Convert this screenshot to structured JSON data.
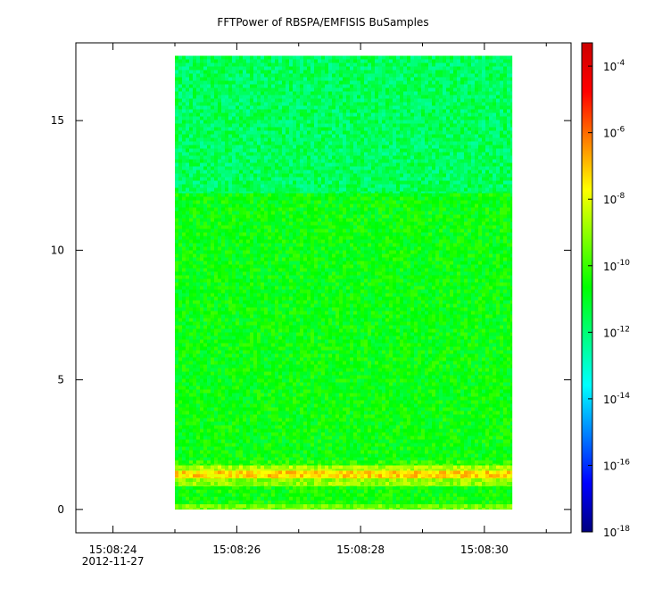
{
  "chart_data": {
    "type": "heatmap",
    "title": "FFTPower of RBSPA/EMFISIS  BuSamples",
    "xlabel": "",
    "ylabel": "",
    "x_range": [
      "15:08:23.4",
      "15:08:31.4"
    ],
    "x_ticks": [
      {
        "label": "15:08:24",
        "sub": "2012-11-27",
        "t": 0.6
      },
      {
        "label": "15:08:26",
        "sub": "",
        "t": 2.6
      },
      {
        "label": "15:08:28",
        "sub": "",
        "t": 4.6
      },
      {
        "label": "15:08:30",
        "sub": "",
        "t": 6.6
      }
    ],
    "x_minor_ticks": [
      1.6,
      3.6,
      5.6,
      7.6
    ],
    "ylim": [
      -0.9,
      18.0
    ],
    "y_ticks": [
      0,
      5,
      10,
      15
    ],
    "colorbar": {
      "scale": "log",
      "range_exp": [
        -18,
        -3.3
      ],
      "tick_exps": [
        -18,
        -16,
        -14,
        -12,
        -10,
        -8,
        -6,
        -4
      ],
      "tick_base": "10",
      "colors": [
        "#00007f",
        "#0000ff",
        "#0080ff",
        "#00ffff",
        "#00ff80",
        "#00ff00",
        "#80ff00",
        "#ffff00",
        "#ff8000",
        "#ff0000",
        "#cc0000"
      ]
    },
    "data_extent": {
      "t_start": 1.6,
      "t_end": 7.05,
      "f_min": 0.0,
      "f_max": 17.5
    },
    "bands": [
      {
        "f_low": 0.0,
        "f_high": 0.2,
        "log10_power": -9.4
      },
      {
        "f_low": 0.2,
        "f_high": 0.9,
        "log10_power": -10.6
      },
      {
        "f_low": 0.9,
        "f_high": 1.2,
        "log10_power": -9.0
      },
      {
        "f_low": 1.2,
        "f_high": 1.5,
        "log10_power": -7.3
      },
      {
        "f_low": 1.5,
        "f_high": 1.7,
        "log10_power": -8.7
      },
      {
        "f_low": 1.7,
        "f_high": 1.9,
        "log10_power": -10.2
      },
      {
        "f_low": 1.9,
        "f_high": 12.2,
        "log10_power": -10.7
      },
      {
        "f_low": 12.2,
        "f_high": 17.5,
        "log10_power": -11.7
      }
    ]
  }
}
